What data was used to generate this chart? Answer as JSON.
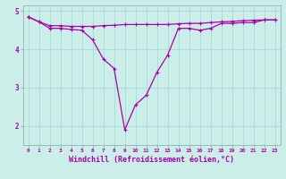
{
  "xlabel": "Windchill (Refroidissement éolien,°C)",
  "background_color": "#cceee8",
  "grid_color": "#aadddd",
  "line_color": "#aa00aa",
  "x_values": [
    0,
    1,
    2,
    3,
    4,
    5,
    6,
    7,
    8,
    9,
    10,
    11,
    12,
    13,
    14,
    15,
    16,
    17,
    18,
    19,
    20,
    21,
    22,
    23
  ],
  "line1": [
    4.85,
    4.72,
    4.62,
    4.62,
    4.6,
    4.6,
    4.6,
    4.62,
    4.63,
    4.65,
    4.65,
    4.65,
    4.65,
    4.65,
    4.67,
    4.68,
    4.68,
    4.7,
    4.72,
    4.73,
    4.75,
    4.76,
    4.77,
    4.77
  ],
  "line2": [
    4.85,
    4.72,
    4.55,
    4.55,
    4.52,
    4.5,
    4.25,
    3.75,
    3.5,
    1.9,
    2.55,
    2.8,
    3.4,
    3.85,
    4.55,
    4.55,
    4.5,
    4.55,
    4.68,
    4.68,
    4.7,
    4.7,
    4.77,
    4.77
  ],
  "ylim": [
    1.5,
    5.15
  ],
  "yticks": [
    2,
    3,
    4,
    5
  ],
  "xlim": [
    -0.5,
    23.5
  ],
  "xticks": [
    0,
    1,
    2,
    3,
    4,
    5,
    6,
    7,
    8,
    9,
    10,
    11,
    12,
    13,
    14,
    15,
    16,
    17,
    18,
    19,
    20,
    21,
    22,
    23
  ]
}
